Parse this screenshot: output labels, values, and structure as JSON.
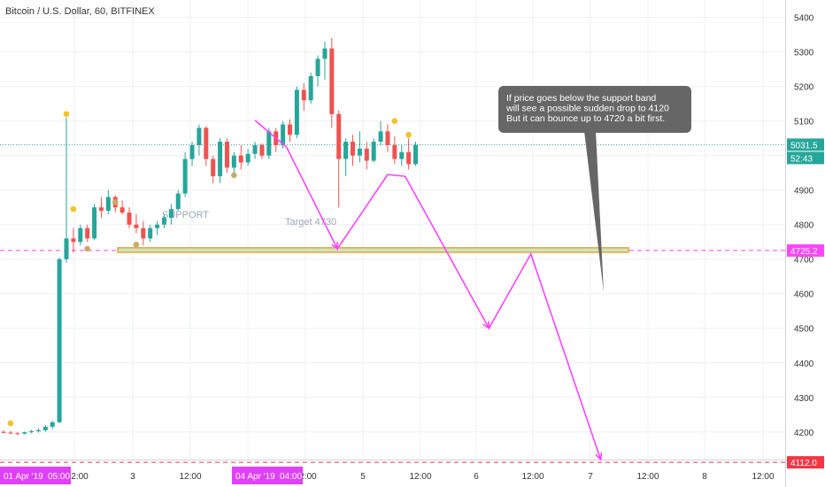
{
  "header": {
    "title": "Bitcoin / U.S. Dollar, 60, BITFINEX"
  },
  "colors": {
    "up": "#26a69a",
    "down": "#ef5350",
    "arrow": "#ff44ff",
    "grid": "#eef0f3",
    "dot_yellow": "#f2c22b",
    "dot_tan": "#caa869",
    "band": "#e8a33d",
    "callout": "#666666"
  },
  "annotations": {
    "support_label": "SUPPORT",
    "target_label": "Target 4730",
    "callout_lines": [
      "If price goes below the support band",
      "will see a possible sudden drop to 4120",
      "But it can bounce up to 4720 a bit first."
    ]
  },
  "chart_data": {
    "type": "candlestick",
    "title": "Bitcoin / U.S. Dollar, 60, BITFINEX",
    "ylim": [
      4120,
      5440
    ],
    "y_ticks": [
      4200,
      4300,
      4400,
      4500,
      4600,
      4700,
      4800,
      4900,
      5000,
      5100,
      5200,
      5300,
      5400
    ],
    "x_tick_labels": [
      "2:00",
      "3",
      "12:00",
      "2:00",
      "5",
      "12:00",
      "6",
      "12:00",
      "7",
      "12:00",
      "8",
      "12:00"
    ],
    "x_highlight_labels": [
      {
        "label": "01 Apr '19",
        "time": "05:00"
      },
      {
        "label": "04 Apr '19",
        "time": "04:00"
      }
    ],
    "price_labels": [
      {
        "text": "5031.5",
        "value": 5031.5,
        "style": "teal"
      },
      {
        "text": "52:43",
        "value": 4993,
        "style": "teal"
      },
      {
        "text": "4725.2",
        "value": 4725.2,
        "style": "magenta"
      },
      {
        "text": "4112.0",
        "value": 4112,
        "style": "red"
      }
    ],
    "horizontal_lines": [
      {
        "value": 5031.5,
        "style": "teal-dotted"
      },
      {
        "value": 4725.2,
        "style": "magenta-dashed"
      },
      {
        "value": 4112,
        "style": "red-dashed"
      }
    ],
    "support_band": {
      "low": 4720,
      "high": 4733
    },
    "candles": [
      [
        4200,
        4205,
        4195,
        4198
      ],
      [
        4198,
        4203,
        4193,
        4196
      ],
      [
        4196,
        4200,
        4192,
        4195
      ],
      [
        4195,
        4201,
        4193,
        4199
      ],
      [
        4199,
        4206,
        4196,
        4202
      ],
      [
        4202,
        4210,
        4198,
        4205
      ],
      [
        4205,
        4220,
        4200,
        4215
      ],
      [
        4215,
        4232,
        4208,
        4228
      ],
      [
        4228,
        4705,
        4225,
        4700
      ],
      [
        4700,
        5110,
        4690,
        4760
      ],
      [
        4760,
        4790,
        4720,
        4750
      ],
      [
        4750,
        4800,
        4740,
        4790
      ],
      [
        4790,
        4800,
        4750,
        4760
      ],
      [
        4760,
        4860,
        4755,
        4850
      ],
      [
        4850,
        4880,
        4820,
        4840
      ],
      [
        4840,
        4900,
        4830,
        4880
      ],
      [
        4880,
        4885,
        4835,
        4850
      ],
      [
        4850,
        4870,
        4830,
        4835
      ],
      [
        4835,
        4850,
        4790,
        4800
      ],
      [
        4800,
        4830,
        4775,
        4790
      ],
      [
        4790,
        4810,
        4740,
        4760
      ],
      [
        4760,
        4800,
        4750,
        4790
      ],
      [
        4790,
        4810,
        4770,
        4800
      ],
      [
        4800,
        4830,
        4790,
        4820
      ],
      [
        4820,
        4860,
        4800,
        4845
      ],
      [
        4845,
        4900,
        4840,
        4890
      ],
      [
        4890,
        5010,
        4880,
        4990
      ],
      [
        4990,
        5040,
        4970,
        5030
      ],
      [
        5030,
        5090,
        5000,
        5080
      ],
      [
        5080,
        5085,
        4970,
        4990
      ],
      [
        4990,
        5000,
        4920,
        4940
      ],
      [
        4940,
        5050,
        4920,
        5040
      ],
      [
        5040,
        5050,
        4950,
        4965
      ],
      [
        4965,
        5010,
        4950,
        5000
      ],
      [
        5000,
        5030,
        4960,
        4980
      ],
      [
        4980,
        5020,
        4970,
        5005
      ],
      [
        5005,
        5040,
        4990,
        5030
      ],
      [
        5030,
        5035,
        4990,
        5000
      ],
      [
        5000,
        5080,
        4990,
        5070
      ],
      [
        5070,
        5080,
        5010,
        5030
      ],
      [
        5030,
        5100,
        5020,
        5090
      ],
      [
        5090,
        5105,
        5040,
        5060
      ],
      [
        5060,
        5200,
        5050,
        5190
      ],
      [
        5190,
        5210,
        5130,
        5160
      ],
      [
        5160,
        5240,
        5150,
        5230
      ],
      [
        5230,
        5290,
        5200,
        5280
      ],
      [
        5280,
        5330,
        5220,
        5310
      ],
      [
        5310,
        5340,
        5080,
        5120
      ],
      [
        5120,
        5130,
        4850,
        4990
      ],
      [
        4990,
        5050,
        4940,
        5040
      ],
      [
        5040,
        5060,
        4970,
        5000
      ],
      [
        5000,
        5070,
        4980,
        5020
      ],
      [
        5020,
        5040,
        4960,
        4985
      ],
      [
        4985,
        5050,
        4980,
        5040
      ],
      [
        5040,
        5100,
        5030,
        5070
      ],
      [
        5070,
        5090,
        5010,
        5030
      ],
      [
        5030,
        5055,
        4975,
        4990
      ],
      [
        4990,
        5030,
        4970,
        5010
      ],
      [
        5010,
        5050,
        4960,
        4975
      ],
      [
        4975,
        5040,
        4970,
        5030
      ]
    ],
    "markers": [
      {
        "candle": 1,
        "value": 4225,
        "color": "yellow"
      },
      {
        "candle": 9,
        "value": 5120,
        "color": "yellow"
      },
      {
        "candle": 10,
        "value": 4845,
        "color": "yellow"
      },
      {
        "candle": 12,
        "value": 4730,
        "color": "tan"
      },
      {
        "candle": 16,
        "value": 4865,
        "color": "tan"
      },
      {
        "candle": 19,
        "value": 4742,
        "color": "tan"
      },
      {
        "candle": 33,
        "value": 4943,
        "color": "tan"
      },
      {
        "candle": 56,
        "value": 5100,
        "color": "yellow"
      },
      {
        "candle": 58,
        "value": 5060,
        "color": "yellow"
      }
    ],
    "projection_path": [
      {
        "time": 36.0,
        "value": 5102
      },
      {
        "time": 40.5,
        "value": 5025
      },
      {
        "time": 47.8,
        "value": 4730
      },
      {
        "time": 55.0,
        "value": 4945
      },
      {
        "time": 57.5,
        "value": 4940
      },
      {
        "time": 69.5,
        "value": 4500
      },
      {
        "time": 75.5,
        "value": 4715
      },
      {
        "time": 85.5,
        "value": 4120
      }
    ]
  }
}
